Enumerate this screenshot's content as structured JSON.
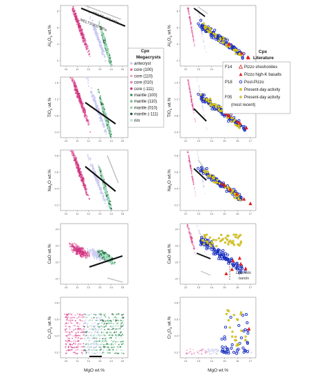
{
  "figure": {
    "megacryst_legend": {
      "title_line1": "Cpx",
      "title_line2": "Megacrysts",
      "entries": [
        {
          "label": "antecryst",
          "color": "#c9c9f2"
        },
        {
          "label": "core (100)",
          "color": "#f06aa0"
        },
        {
          "label": "core (110)",
          "color": "#f3a0c0"
        },
        {
          "label": "core (010)",
          "color": "#e080c0"
        },
        {
          "label": "core (-111)",
          "color": "#d0307a"
        },
        {
          "label": "mantle (100)",
          "color": "#3e8e5a"
        },
        {
          "label": "mantle (110)",
          "color": "#6fbf8a"
        },
        {
          "label": "mantle (010)",
          "color": "#8fd0a8"
        },
        {
          "label": "mantle (-111)",
          "color": "#1f5e3a"
        },
        {
          "label": "rim",
          "color": "#a8e6c8"
        }
      ]
    },
    "literature_legend": {
      "title_line1": "Cpx",
      "title_line2": "Literature",
      "entries": [
        {
          "code": "F14",
          "label": "Pizzo shoshonites",
          "marker": "triangle-open",
          "color": "#e02020"
        },
        {
          "code": "",
          "label": "Pizzo high-K basalts",
          "marker": "triangle",
          "color": "#e02020"
        },
        {
          "code": "P18",
          "label": "Post-Pizzo",
          "marker": "circle",
          "color": "#1a2fbf"
        },
        {
          "code": "",
          "label": "Present-day activity",
          "marker": "circle-yellow",
          "color": "#e6d21c"
        },
        {
          "code": "F05",
          "label": "Present-day activity",
          "marker": "star",
          "color": "#e6d21c"
        },
        {
          "code": "",
          "label": "(most recent)",
          "marker": "",
          "color": ""
        }
      ]
    },
    "melts_labels": [
      "MELTS 400 MPa",
      "MELTS 300 MPa"
    ],
    "diopsidic_label_line1": "Diopsidic",
    "diopsidic_label_line2": "bands",
    "colors": {
      "trend_black": "#111111",
      "trend_grey": "#bbbbbb",
      "megacryst_pink": "#f06aa0",
      "megacryst_green": "#3e8e5a",
      "megacryst_lilac": "#c9c9f2",
      "lit_blue": "#1a2fbf",
      "lit_yellow": "#e6d21c",
      "lit_red": "#e02020"
    }
  },
  "chart_data": [
    {
      "type": "scatter",
      "panel": "left",
      "ylabel": "Al2O3 wt.%",
      "xlabel": "",
      "x_ticks": [
        "10",
        "11",
        "12",
        "13",
        "14",
        "15"
      ],
      "y_ticks": [
        "8",
        "6",
        "4",
        "2"
      ],
      "series": [
        {
          "name": "antecryst",
          "trend": "x≈14.5→16.5"
        },
        {
          "name": "core",
          "trend": "x≈12→14"
        },
        {
          "name": "mantle",
          "trend": "x≈13.5→16"
        }
      ]
    },
    {
      "type": "scatter",
      "panel": "right",
      "ylabel": "Al2O3 wt.%",
      "xlabel": "",
      "x_ticks": [
        "12",
        "13",
        "14",
        "15",
        "16",
        "17"
      ],
      "y_ticks": [
        "8",
        "6",
        "4",
        "2"
      ]
    },
    {
      "type": "scatter",
      "panel": "left",
      "ylabel": "TiO2 wt.%",
      "xlabel": "",
      "x_ticks": [
        "10",
        "11",
        "12",
        "13",
        "14",
        "15"
      ],
      "y_ticks": [
        "1.6",
        "1.2",
        "0.8",
        "0.4"
      ]
    },
    {
      "type": "scatter",
      "panel": "right",
      "ylabel": "TiO2 wt.%",
      "xlabel": "",
      "x_ticks": [
        "12",
        "13",
        "14",
        "15",
        "16",
        "17"
      ],
      "y_ticks": [
        "1.6",
        "1.2",
        "0.8",
        "0.4"
      ]
    },
    {
      "type": "scatter",
      "panel": "left",
      "ylabel": "Na2O wt.%",
      "xlabel": "",
      "x_ticks": [
        "10",
        "11",
        "12",
        "13",
        "14",
        "15"
      ],
      "y_ticks": [
        "0.8",
        "0.6",
        "0.4",
        "0.2"
      ]
    },
    {
      "type": "scatter",
      "panel": "right",
      "ylabel": "Na2O wt.%",
      "xlabel": "",
      "x_ticks": [
        "12",
        "13",
        "14",
        "15",
        "16",
        "17"
      ],
      "y_ticks": [
        "0.8",
        "0.6",
        "0.4",
        "0.2"
      ]
    },
    {
      "type": "scatter",
      "panel": "left",
      "ylabel": "CaO wt.%",
      "xlabel": "",
      "x_ticks": [
        "10",
        "11",
        "12",
        "13",
        "14",
        "15"
      ],
      "y_ticks": [
        "24",
        "23",
        "22",
        "21"
      ]
    },
    {
      "type": "scatter",
      "panel": "right",
      "ylabel": "CaO wt.%",
      "xlabel": "",
      "x_ticks": [
        "12",
        "13",
        "14",
        "15",
        "16",
        "17"
      ],
      "y_ticks": [
        "24",
        "23",
        "22",
        "21"
      ]
    },
    {
      "type": "scatter",
      "panel": "left",
      "ylabel": "Cr2O3 wt.%",
      "xlabel": "MgO wt.%",
      "x_ticks": [
        "10",
        "11",
        "12",
        "13",
        "14",
        "15"
      ],
      "y_ticks": [
        "0.8",
        "0.6",
        "0.4",
        "0.2"
      ]
    },
    {
      "type": "scatter",
      "panel": "right",
      "ylabel": "Cr2O3 wt.%",
      "xlabel": "MgO wt.%",
      "x_ticks": [
        "12",
        "13",
        "14",
        "15",
        "16",
        "17"
      ],
      "y_ticks": [
        "0.8",
        "0.6",
        "0.4",
        "0.2"
      ]
    }
  ]
}
